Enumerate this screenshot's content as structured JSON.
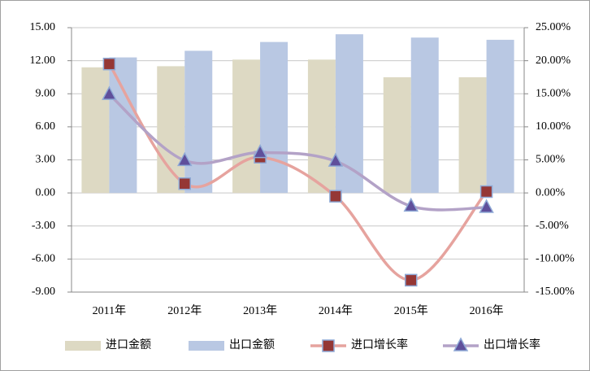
{
  "chart_data": {
    "type": "bar-line",
    "categories": [
      "2011年",
      "2012年",
      "2013年",
      "2014年",
      "2015年",
      "2016年"
    ],
    "ylim": [
      -9,
      15
    ],
    "yticks": [
      {
        "value": 15,
        "label": "15.00"
      },
      {
        "value": 12,
        "label": "12.00"
      },
      {
        "value": 9,
        "label": "9.00"
      },
      {
        "value": 6,
        "label": "6.00"
      },
      {
        "value": 3,
        "label": "3.00"
      },
      {
        "value": 0,
        "label": "0.00"
      },
      {
        "value": -3,
        "label": "-3.00"
      },
      {
        "value": -6,
        "label": "-6.00"
      },
      {
        "value": -9,
        "label": "-9.00"
      }
    ],
    "y2lim": [
      -15,
      25
    ],
    "y2ticks": [
      {
        "value": 25,
        "label": "25.00%"
      },
      {
        "value": 20,
        "label": "20.00%"
      },
      {
        "value": 15,
        "label": "15.00%"
      },
      {
        "value": 10,
        "label": "10.00%"
      },
      {
        "value": 5,
        "label": "5.00%"
      },
      {
        "value": 0,
        "label": "0.00%"
      },
      {
        "value": -5,
        "label": "-5.00%"
      },
      {
        "value": -10,
        "label": "-10.00%"
      },
      {
        "value": -15,
        "label": "-15.00%"
      }
    ],
    "grid": true,
    "series": [
      {
        "name": "进口金额",
        "type": "bar",
        "color": "#ddd9c3",
        "values": [
          11.4,
          11.5,
          12.1,
          12.1,
          10.5,
          10.5
        ]
      },
      {
        "name": "出口金额",
        "type": "bar",
        "color": "#b9c8e3",
        "values": [
          12.3,
          12.9,
          13.7,
          14.4,
          14.1,
          13.9
        ]
      },
      {
        "name": "进口增长率",
        "type": "line",
        "axis": "y2",
        "color": "#e6a39e",
        "marker": "square",
        "marker_color": "#953735",
        "values": [
          19.5,
          1.4,
          5.4,
          -0.5,
          -13.2,
          0.2
        ]
      },
      {
        "name": "出口增长率",
        "type": "line",
        "axis": "y2",
        "color": "#b3a2c7",
        "marker": "triangle",
        "marker_color": "#5f4f9b",
        "values": [
          14.9,
          4.9,
          6.1,
          4.8,
          -2.0,
          -2.2
        ]
      }
    ]
  }
}
